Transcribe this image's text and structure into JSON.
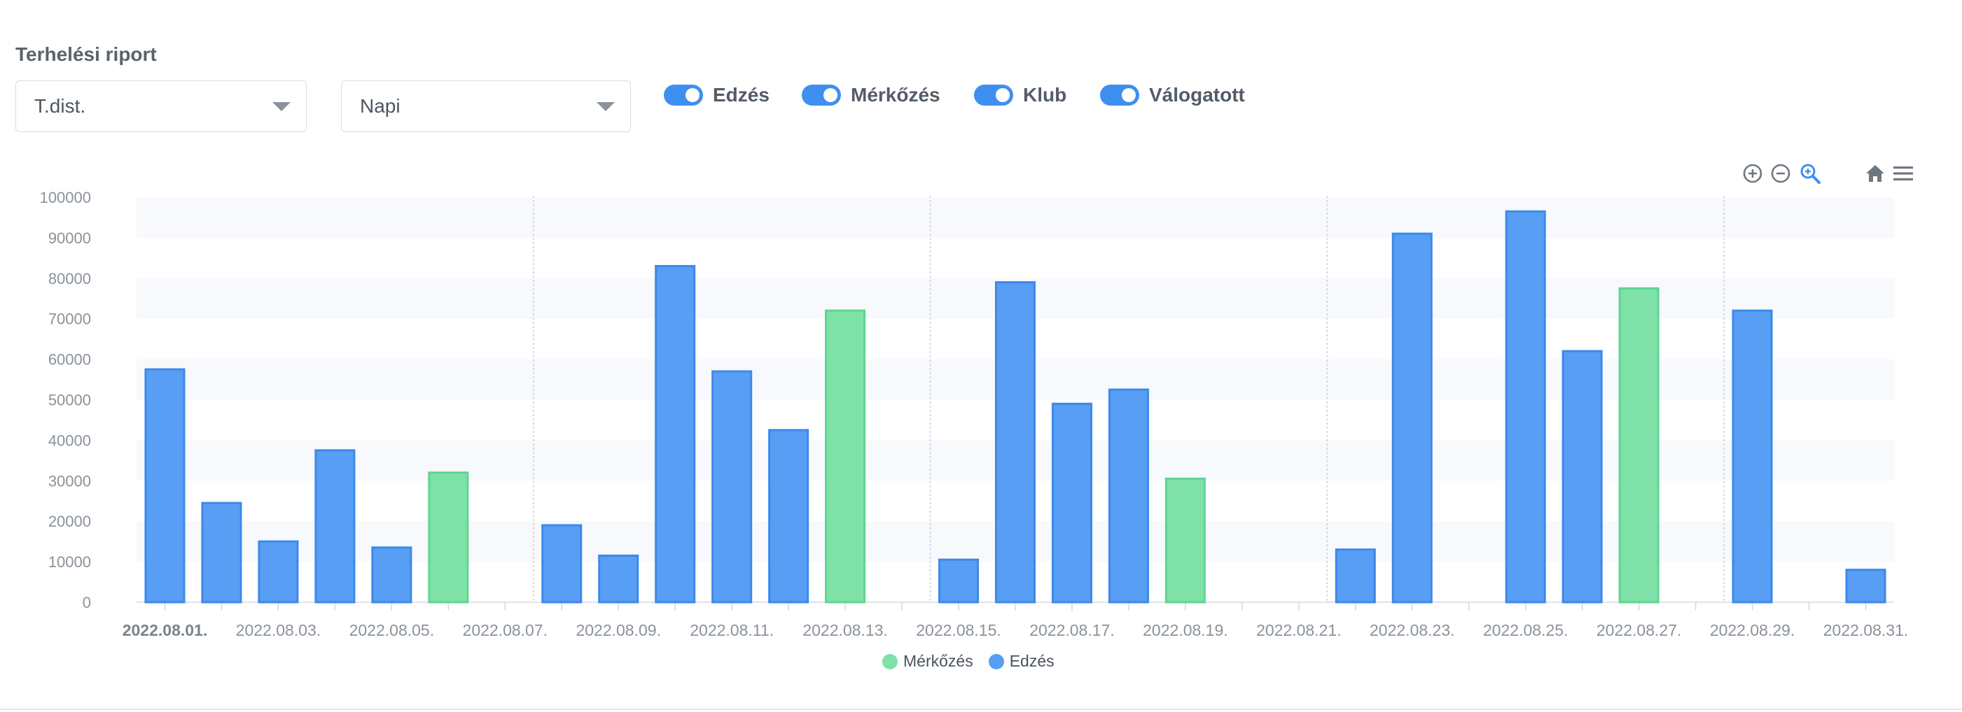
{
  "page": {
    "title": "Terhelési riport"
  },
  "controls": {
    "metric_select": {
      "value": "T.dist."
    },
    "period_select": {
      "value": "Napi"
    },
    "toggles": [
      {
        "label": "Edzés",
        "on": true
      },
      {
        "label": "Mérkőzés",
        "on": true
      },
      {
        "label": "Klub",
        "on": true
      },
      {
        "label": "Válogatott",
        "on": true
      }
    ]
  },
  "toolbar": {
    "icons": [
      "zoom-in-icon",
      "zoom-out-icon",
      "selection-zoom-icon",
      "home-icon",
      "menu-icon"
    ],
    "colors": {
      "default": "#6e7780",
      "active": "#3f8ff0"
    }
  },
  "chart_data": {
    "type": "bar",
    "ylim": [
      0,
      100000
    ],
    "yticks": [
      0,
      10000,
      20000,
      30000,
      40000,
      50000,
      60000,
      70000,
      80000,
      90000,
      100000
    ],
    "x_tick_labels": [
      "2022.08.01.",
      "2022.08.03.",
      "2022.08.05.",
      "2022.08.07.",
      "2022.08.09.",
      "2022.08.11.",
      "2022.08.13.",
      "2022.08.15.",
      "2022.08.17.",
      "2022.08.19.",
      "2022.08.21.",
      "2022.08.23.",
      "2022.08.25.",
      "2022.08.27.",
      "2022.08.29.",
      "2022.08.31."
    ],
    "highlighted_tick": "2022.08.01.",
    "grid": {
      "horizontal_bands": true,
      "week_separators_after": [
        "2022.08.07.",
        "2022.08.14.",
        "2022.08.21.",
        "2022.08.28."
      ]
    },
    "legend_position": "bottom-center",
    "series": [
      {
        "name": "Mérkőzés",
        "color": "#7ee2a8",
        "border": "#5fd592"
      },
      {
        "name": "Edzés",
        "color": "#579ef4",
        "border": "#3d89ea"
      }
    ],
    "bars": [
      {
        "date": "2022.08.01.",
        "value": 57500,
        "series": "Edzés"
      },
      {
        "date": "2022.08.02.",
        "value": 24500,
        "series": "Edzés"
      },
      {
        "date": "2022.08.03.",
        "value": 15000,
        "series": "Edzés"
      },
      {
        "date": "2022.08.04.",
        "value": 37500,
        "series": "Edzés"
      },
      {
        "date": "2022.08.05.",
        "value": 13500,
        "series": "Edzés"
      },
      {
        "date": "2022.08.06.",
        "value": 32000,
        "series": "Mérkőzés"
      },
      {
        "date": "2022.08.08.",
        "value": 19000,
        "series": "Edzés"
      },
      {
        "date": "2022.08.09.",
        "value": 11500,
        "series": "Edzés"
      },
      {
        "date": "2022.08.10.",
        "value": 83000,
        "series": "Edzés"
      },
      {
        "date": "2022.08.11.",
        "value": 57000,
        "series": "Edzés"
      },
      {
        "date": "2022.08.12.",
        "value": 42500,
        "series": "Edzés"
      },
      {
        "date": "2022.08.13.",
        "value": 72000,
        "series": "Mérkőzés"
      },
      {
        "date": "2022.08.15.",
        "value": 10500,
        "series": "Edzés"
      },
      {
        "date": "2022.08.16.",
        "value": 79000,
        "series": "Edzés"
      },
      {
        "date": "2022.08.17.",
        "value": 49000,
        "series": "Edzés"
      },
      {
        "date": "2022.08.18.",
        "value": 52500,
        "series": "Edzés"
      },
      {
        "date": "2022.08.19.",
        "value": 30500,
        "series": "Mérkőzés"
      },
      {
        "date": "2022.08.22.",
        "value": 13000,
        "series": "Edzés"
      },
      {
        "date": "2022.08.23.",
        "value": 91000,
        "series": "Edzés"
      },
      {
        "date": "2022.08.25.",
        "value": 96500,
        "series": "Edzés"
      },
      {
        "date": "2022.08.26.",
        "value": 62000,
        "series": "Edzés"
      },
      {
        "date": "2022.08.27.",
        "value": 77500,
        "series": "Mérkőzés"
      },
      {
        "date": "2022.08.29.",
        "value": 72000,
        "series": "Edzés"
      },
      {
        "date": "2022.08.31.",
        "value": 8000,
        "series": "Edzés"
      }
    ]
  }
}
